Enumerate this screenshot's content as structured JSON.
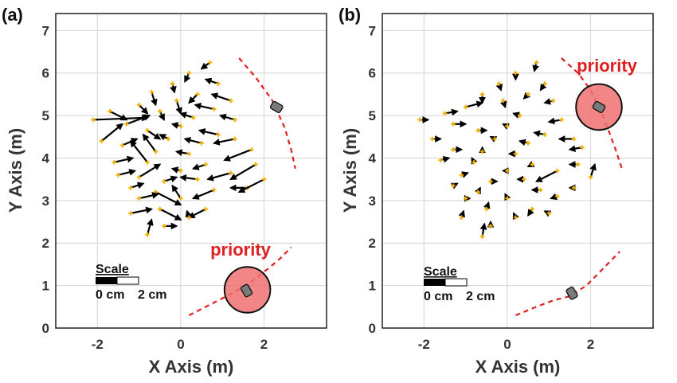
{
  "chart_data": [
    {
      "type": "scatter",
      "panel_label": "(a)",
      "xlabel": "X Axis  (m)",
      "ylabel": "Y Axis  (m)",
      "xlim": [
        -3,
        3.5
      ],
      "ylim": [
        0,
        7.4
      ],
      "xticks": [
        -2,
        0,
        2
      ],
      "xtick_labels": [
        "-2",
        "0",
        "2"
      ],
      "yticks": [
        0,
        1,
        2,
        3,
        4,
        5,
        6,
        7
      ],
      "ytick_labels": [
        "0",
        "1",
        "2",
        "3",
        "4",
        "5",
        "6",
        "7"
      ],
      "grid": true,
      "priority_label": "priority",
      "scale_label": "Scale",
      "scale_ticks": [
        "0 cm",
        "2 cm"
      ],
      "priority_zone": {
        "x": 1.6,
        "y": 0.9,
        "r": 0.55
      },
      "trajectories": [
        {
          "role": "upper-vehicle-path",
          "points": [
            [
              1.4,
              6.35
            ],
            [
              1.8,
              5.9
            ],
            [
              2.2,
              5.35
            ],
            [
              2.5,
              4.7
            ],
            [
              2.65,
              4.2
            ],
            [
              2.75,
              3.75
            ]
          ]
        },
        {
          "role": "lower-vehicle-path",
          "points": [
            [
              0.2,
              0.3
            ],
            [
              0.8,
              0.6
            ],
            [
              1.3,
              0.85
            ],
            [
              1.7,
              1.1
            ],
            [
              2.1,
              1.4
            ],
            [
              2.4,
              1.65
            ],
            [
              2.65,
              1.9
            ]
          ]
        }
      ],
      "vehicles": [
        {
          "x": 2.3,
          "y": 5.2,
          "angle": -60
        },
        {
          "x": 1.58,
          "y": 0.88,
          "angle": -30
        }
      ],
      "vectors": [
        {
          "x": 0.7,
          "y": 6.25,
          "dx": -0.2,
          "dy": -0.15
        },
        {
          "x": 0.2,
          "y": 6.0,
          "dx": -0.1,
          "dy": -0.2
        },
        {
          "x": -0.2,
          "y": 5.75,
          "dx": 0.05,
          "dy": -0.2
        },
        {
          "x": 0.9,
          "y": 5.75,
          "dx": -0.3,
          "dy": 0.1
        },
        {
          "x": -0.7,
          "y": 5.55,
          "dx": 0.1,
          "dy": -0.3
        },
        {
          "x": 0.4,
          "y": 5.5,
          "dx": -0.2,
          "dy": -0.2
        },
        {
          "x": -0.1,
          "y": 5.35,
          "dx": 0.1,
          "dy": -0.3
        },
        {
          "x": 1.2,
          "y": 5.35,
          "dx": -0.45,
          "dy": 0.15
        },
        {
          "x": -1.0,
          "y": 5.25,
          "dx": 0.2,
          "dy": -0.2
        },
        {
          "x": -0.5,
          "y": 5.1,
          "dx": 0.1,
          "dy": -0.2
        },
        {
          "x": 0.8,
          "y": 5.15,
          "dx": -0.45,
          "dy": 0.1
        },
        {
          "x": -1.7,
          "y": 5.1,
          "dx": 0.4,
          "dy": -0.2
        },
        {
          "x": 0.3,
          "y": 4.95,
          "dx": -0.3,
          "dy": 0.1
        },
        {
          "x": -2.1,
          "y": 4.9,
          "dx": 1.3,
          "dy": 0.05
        },
        {
          "x": -1.3,
          "y": 4.8,
          "dx": 0.55,
          "dy": 0.2
        },
        {
          "x": 1.3,
          "y": 4.9,
          "dx": -0.35,
          "dy": 0.1
        },
        {
          "x": 0.0,
          "y": 4.75,
          "dx": -0.2,
          "dy": 0.05
        },
        {
          "x": -0.8,
          "y": 4.65,
          "dx": 0.3,
          "dy": -0.2
        },
        {
          "x": 0.9,
          "y": 4.55,
          "dx": -0.45,
          "dy": 0.1
        },
        {
          "x": -1.9,
          "y": 4.4,
          "dx": 0.5,
          "dy": 0.4
        },
        {
          "x": -0.3,
          "y": 4.45,
          "dx": -0.2,
          "dy": 0.1
        },
        {
          "x": 0.5,
          "y": 4.35,
          "dx": -0.4,
          "dy": 0.1
        },
        {
          "x": 1.3,
          "y": 4.45,
          "dx": -0.5,
          "dy": -0.1
        },
        {
          "x": -1.4,
          "y": 4.3,
          "dx": 0.35,
          "dy": 0.15
        },
        {
          "x": -0.6,
          "y": 4.15,
          "dx": -0.3,
          "dy": 0.4
        },
        {
          "x": 0.2,
          "y": 4.1,
          "dx": -0.3,
          "dy": 0.05
        },
        {
          "x": 1.7,
          "y": 4.2,
          "dx": -0.65,
          "dy": -0.25
        },
        {
          "x": -1.6,
          "y": 3.9,
          "dx": 0.45,
          "dy": 0.1
        },
        {
          "x": -0.8,
          "y": 3.9,
          "dx": -0.4,
          "dy": 0.5
        },
        {
          "x": 0.6,
          "y": 3.85,
          "dx": -0.3,
          "dy": -0.1
        },
        {
          "x": 1.8,
          "y": 3.85,
          "dx": -0.6,
          "dy": -0.35
        },
        {
          "x": -1.0,
          "y": 3.55,
          "dx": 0.5,
          "dy": 0.3
        },
        {
          "x": 0.0,
          "y": 3.7,
          "dx": -0.2,
          "dy": 0.05
        },
        {
          "x": -1.5,
          "y": 3.6,
          "dx": 0.4,
          "dy": 0.1
        },
        {
          "x": 1.2,
          "y": 3.65,
          "dx": -0.55,
          "dy": -0.15
        },
        {
          "x": -0.4,
          "y": 3.45,
          "dx": 0.3,
          "dy": 0.1
        },
        {
          "x": 0.4,
          "y": 3.5,
          "dx": -0.4,
          "dy": 0.05
        },
        {
          "x": 1.6,
          "y": 3.3,
          "dx": -0.4,
          "dy": 0.0
        },
        {
          "x": 2.0,
          "y": 3.5,
          "dx": -0.6,
          "dy": -0.3
        },
        {
          "x": -1.2,
          "y": 3.3,
          "dx": 0.3,
          "dy": 0.1
        },
        {
          "x": -0.6,
          "y": 3.2,
          "dx": 0.6,
          "dy": -0.3
        },
        {
          "x": 0.8,
          "y": 3.25,
          "dx": -0.5,
          "dy": -0.2
        },
        {
          "x": -1.0,
          "y": 3.05,
          "dx": 0.45,
          "dy": 0.1
        },
        {
          "x": 0.0,
          "y": 3.05,
          "dx": -0.2,
          "dy": 0.3
        },
        {
          "x": -0.5,
          "y": 2.8,
          "dx": 0.5,
          "dy": -0.25
        },
        {
          "x": 0.6,
          "y": 2.8,
          "dx": -0.4,
          "dy": -0.2
        },
        {
          "x": -1.2,
          "y": 2.7,
          "dx": 0.5,
          "dy": 0.1
        },
        {
          "x": 0.2,
          "y": 2.6,
          "dx": -0.05,
          "dy": 0.15
        },
        {
          "x": -0.4,
          "y": 2.4,
          "dx": 0.3,
          "dy": 0.0
        },
        {
          "x": -0.8,
          "y": 2.2,
          "dx": 0.1,
          "dy": 0.35
        }
      ]
    },
    {
      "type": "scatter",
      "panel_label": "(b)",
      "xlabel": "X Axis  (m)",
      "ylabel": "Y Axis  (m)",
      "xlim": [
        -3,
        3.5
      ],
      "ylim": [
        0,
        7.4
      ],
      "xticks": [
        -2,
        0,
        2
      ],
      "xtick_labels": [
        "-2",
        "0",
        "2"
      ],
      "yticks": [
        0,
        1,
        2,
        3,
        4,
        5,
        6,
        7
      ],
      "ytick_labels": [
        "0",
        "1",
        "2",
        "3",
        "4",
        "5",
        "6",
        "7"
      ],
      "grid": true,
      "priority_label": "priority",
      "scale_label": "Scale",
      "scale_ticks": [
        "0 cm",
        "2 cm"
      ],
      "priority_zone": {
        "x": 2.2,
        "y": 5.2,
        "r": 0.55
      },
      "trajectories": [
        {
          "role": "upper-vehicle-path",
          "points": [
            [
              1.3,
              6.35
            ],
            [
              1.7,
              6.0
            ],
            [
              2.0,
              5.6
            ],
            [
              2.25,
              5.1
            ],
            [
              2.45,
              4.6
            ],
            [
              2.6,
              4.2
            ],
            [
              2.75,
              3.75
            ]
          ]
        },
        {
          "role": "lower-vehicle-path",
          "points": [
            [
              0.2,
              0.3
            ],
            [
              0.7,
              0.5
            ],
            [
              1.1,
              0.65
            ],
            [
              1.5,
              0.75
            ],
            [
              1.9,
              1.0
            ],
            [
              2.2,
              1.3
            ],
            [
              2.45,
              1.55
            ],
            [
              2.7,
              1.8
            ]
          ]
        }
      ],
      "vehicles": [
        {
          "x": 2.2,
          "y": 5.2,
          "angle": -60
        },
        {
          "x": 1.55,
          "y": 0.82,
          "angle": -30
        }
      ],
      "vectors": [
        {
          "x": 0.7,
          "y": 6.25,
          "dx": -0.05,
          "dy": -0.2
        },
        {
          "x": 0.2,
          "y": 6.0,
          "dx": 0.0,
          "dy": -0.15
        },
        {
          "x": -0.2,
          "y": 5.75,
          "dx": 0.05,
          "dy": -0.15
        },
        {
          "x": 0.9,
          "y": 5.75,
          "dx": -0.1,
          "dy": -0.15
        },
        {
          "x": -0.6,
          "y": 5.5,
          "dx": 0.0,
          "dy": -0.2
        },
        {
          "x": 0.5,
          "y": 5.5,
          "dx": -0.1,
          "dy": -0.1
        },
        {
          "x": -0.1,
          "y": 5.35,
          "dx": 0.05,
          "dy": -0.15
        },
        {
          "x": 1.1,
          "y": 5.35,
          "dx": -0.2,
          "dy": -0.05
        },
        {
          "x": -1.0,
          "y": 5.2,
          "dx": 0.4,
          "dy": 0.1
        },
        {
          "x": -1.5,
          "y": 5.05,
          "dx": 0.3,
          "dy": 0.05
        },
        {
          "x": 0.3,
          "y": 5.0,
          "dx": -0.15,
          "dy": 0.05
        },
        {
          "x": -2.1,
          "y": 4.9,
          "dx": 0.2,
          "dy": 0.0
        },
        {
          "x": -1.3,
          "y": 4.8,
          "dx": 0.3,
          "dy": 0.0
        },
        {
          "x": 1.3,
          "y": 4.9,
          "dx": -0.3,
          "dy": -0.05
        },
        {
          "x": 0.0,
          "y": 4.75,
          "dx": -0.1,
          "dy": 0.05
        },
        {
          "x": -0.7,
          "y": 4.65,
          "dx": 0.2,
          "dy": 0.0
        },
        {
          "x": 0.9,
          "y": 4.55,
          "dx": -0.25,
          "dy": 0.05
        },
        {
          "x": -1.8,
          "y": 4.45,
          "dx": 0.2,
          "dy": 0.0
        },
        {
          "x": -0.3,
          "y": 4.45,
          "dx": -0.1,
          "dy": 0.05
        },
        {
          "x": 0.5,
          "y": 4.35,
          "dx": -0.2,
          "dy": 0.05
        },
        {
          "x": 1.6,
          "y": 4.45,
          "dx": -0.35,
          "dy": 0.0
        },
        {
          "x": -1.3,
          "y": 4.2,
          "dx": 0.2,
          "dy": 0.0
        },
        {
          "x": -0.6,
          "y": 4.15,
          "dx": 0.0,
          "dy": 0.1
        },
        {
          "x": 0.2,
          "y": 4.1,
          "dx": -0.15,
          "dy": 0.0
        },
        {
          "x": 1.8,
          "y": 4.25,
          "dx": -0.3,
          "dy": -0.05
        },
        {
          "x": -1.6,
          "y": 3.95,
          "dx": 0.2,
          "dy": 0.05
        },
        {
          "x": -0.8,
          "y": 3.9,
          "dx": -0.05,
          "dy": 0.1
        },
        {
          "x": 0.6,
          "y": 3.85,
          "dx": -0.1,
          "dy": -0.05
        },
        {
          "x": 1.7,
          "y": 3.85,
          "dx": -0.2,
          "dy": 0.0
        },
        {
          "x": -1.1,
          "y": 3.6,
          "dx": 0.15,
          "dy": 0.05
        },
        {
          "x": 0.0,
          "y": 3.7,
          "dx": -0.1,
          "dy": 0.0
        },
        {
          "x": 1.2,
          "y": 3.7,
          "dx": -0.5,
          "dy": -0.25
        },
        {
          "x": 2.0,
          "y": 3.55,
          "dx": 0.1,
          "dy": 0.3
        },
        {
          "x": -0.4,
          "y": 3.45,
          "dx": 0.15,
          "dy": 0.0
        },
        {
          "x": 0.4,
          "y": 3.5,
          "dx": -0.15,
          "dy": 0.0
        },
        {
          "x": 1.6,
          "y": 3.3,
          "dx": -0.1,
          "dy": 0.0
        },
        {
          "x": -1.3,
          "y": 3.35,
          "dx": 0.1,
          "dy": 0.05
        },
        {
          "x": -0.7,
          "y": 3.2,
          "dx": 0.05,
          "dy": 0.1
        },
        {
          "x": 0.8,
          "y": 3.25,
          "dx": -0.2,
          "dy": 0.0
        },
        {
          "x": -1.0,
          "y": 3.05,
          "dx": 0.1,
          "dy": 0.0
        },
        {
          "x": 0.0,
          "y": 3.05,
          "dx": -0.05,
          "dy": 0.1
        },
        {
          "x": 1.2,
          "y": 3.1,
          "dx": -0.15,
          "dy": -0.05
        },
        {
          "x": -0.5,
          "y": 2.8,
          "dx": 0.05,
          "dy": 0.15
        },
        {
          "x": 0.6,
          "y": 2.8,
          "dx": -0.1,
          "dy": -0.15
        },
        {
          "x": -1.1,
          "y": 2.6,
          "dx": 0.05,
          "dy": 0.15
        },
        {
          "x": 0.2,
          "y": 2.6,
          "dx": -0.05,
          "dy": 0.1
        },
        {
          "x": -0.4,
          "y": 2.4,
          "dx": 0.0,
          "dy": 0.1
        },
        {
          "x": -0.6,
          "y": 2.15,
          "dx": 0.05,
          "dy": 0.3
        },
        {
          "x": 1.0,
          "y": 2.7,
          "dx": -0.1,
          "dy": 0.05
        }
      ]
    }
  ]
}
